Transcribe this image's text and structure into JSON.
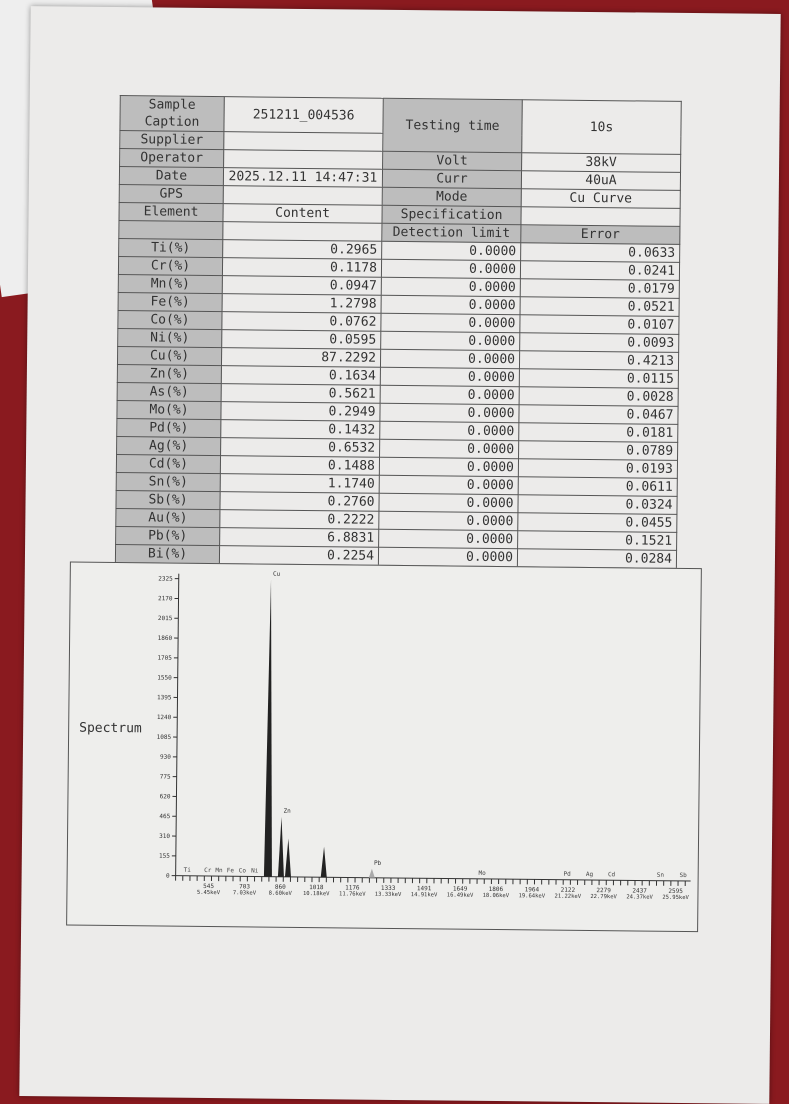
{
  "header": {
    "sample_caption_label": "Sample Caption",
    "sample_caption": "251211_004536",
    "supplier_label": "Supplier",
    "supplier": "",
    "operator_label": "Operator",
    "operator": "",
    "date_label": "Date",
    "date": "2025.12.11 14:47:31",
    "gps_label": "GPS",
    "gps": "",
    "testing_time_label": "Testing time",
    "testing_time": "10s",
    "volt_label": "Volt",
    "volt": "38kV",
    "curr_label": "Curr",
    "curr": "40uA",
    "mode_label": "Mode",
    "mode": "Cu Curve",
    "specification_label": "Specification",
    "specification": ""
  },
  "columns": {
    "element": "Element",
    "content": "Content",
    "detection_limit": "Detection limit",
    "error": "Error"
  },
  "rows": [
    {
      "element": "Ti(%)",
      "content": "0.2965",
      "limit": "0.0000",
      "error": "0.0633"
    },
    {
      "element": "Cr(%)",
      "content": "0.1178",
      "limit": "0.0000",
      "error": "0.0241"
    },
    {
      "element": "Mn(%)",
      "content": "0.0947",
      "limit": "0.0000",
      "error": "0.0179"
    },
    {
      "element": "Fe(%)",
      "content": "1.2798",
      "limit": "0.0000",
      "error": "0.0521"
    },
    {
      "element": "Co(%)",
      "content": "0.0762",
      "limit": "0.0000",
      "error": "0.0107"
    },
    {
      "element": "Ni(%)",
      "content": "0.0595",
      "limit": "0.0000",
      "error": "0.0093"
    },
    {
      "element": "Cu(%)",
      "content": "87.2292",
      "limit": "0.0000",
      "error": "0.4213"
    },
    {
      "element": "Zn(%)",
      "content": "0.1634",
      "limit": "0.0000",
      "error": "0.0115"
    },
    {
      "element": "As(%)",
      "content": "0.5621",
      "limit": "0.0000",
      "error": "0.0028"
    },
    {
      "element": "Mo(%)",
      "content": "0.2949",
      "limit": "0.0000",
      "error": "0.0467"
    },
    {
      "element": "Pd(%)",
      "content": "0.1432",
      "limit": "0.0000",
      "error": "0.0181"
    },
    {
      "element": "Ag(%)",
      "content": "0.6532",
      "limit": "0.0000",
      "error": "0.0789"
    },
    {
      "element": "Cd(%)",
      "content": "0.1488",
      "limit": "0.0000",
      "error": "0.0193"
    },
    {
      "element": "Sn(%)",
      "content": "1.1740",
      "limit": "0.0000",
      "error": "0.0611"
    },
    {
      "element": "Sb(%)",
      "content": "0.2760",
      "limit": "0.0000",
      "error": "0.0324"
    },
    {
      "element": "Au(%)",
      "content": "0.2222",
      "limit": "0.0000",
      "error": "0.0455"
    },
    {
      "element": "Pb(%)",
      "content": "6.8831",
      "limit": "0.0000",
      "error": "0.1521"
    },
    {
      "element": "Bi(%)",
      "content": "0.2254",
      "limit": "0.0000",
      "error": "0.0284"
    }
  ],
  "spectrum": {
    "label": "Spectrum",
    "y_ticks": [
      "2325",
      "2170",
      "2015",
      "1860",
      "1705",
      "1550",
      "1395",
      "1240",
      "1085",
      "930",
      "775",
      "620",
      "465",
      "310",
      "155",
      "0"
    ],
    "x_ticks": [
      [
        "545",
        "5.45keV"
      ],
      [
        "703",
        "7.03keV"
      ],
      [
        "860",
        "8.60keV"
      ],
      [
        "1018",
        "10.18keV"
      ],
      [
        "1176",
        "11.76keV"
      ],
      [
        "1333",
        "13.33keV"
      ],
      [
        "1491",
        "14.91keV"
      ],
      [
        "1649",
        "16.49keV"
      ],
      [
        "1806",
        "18.06keV"
      ],
      [
        "1964",
        "19.64keV"
      ],
      [
        "2122",
        "21.22keV"
      ],
      [
        "2279",
        "22.79keV"
      ],
      [
        "2437",
        "24.37keV"
      ],
      [
        "2595",
        "25.95keV"
      ]
    ],
    "peaks": [
      {
        "label": "Cu",
        "channel": 805,
        "counts": 2325
      },
      {
        "label": "Zn",
        "channel": 862,
        "counts": 470
      },
      {
        "label": "",
        "channel": 893,
        "counts": 300
      },
      {
        "label": "",
        "channel": 1050,
        "counts": 240
      },
      {
        "label": "Pb",
        "channel": 1261,
        "counts": 70
      }
    ],
    "element_markers": [
      "Ti",
      "Cr",
      "Mn",
      "Fe",
      "Co",
      "Ni",
      "Mo",
      "Pd",
      "Ag",
      "Cd",
      "Sn",
      "Sb"
    ],
    "marker_channels": [
      451,
      541,
      590,
      640,
      693,
      747,
      1745,
      2118,
      2216,
      2313,
      2527,
      2627
    ]
  }
}
